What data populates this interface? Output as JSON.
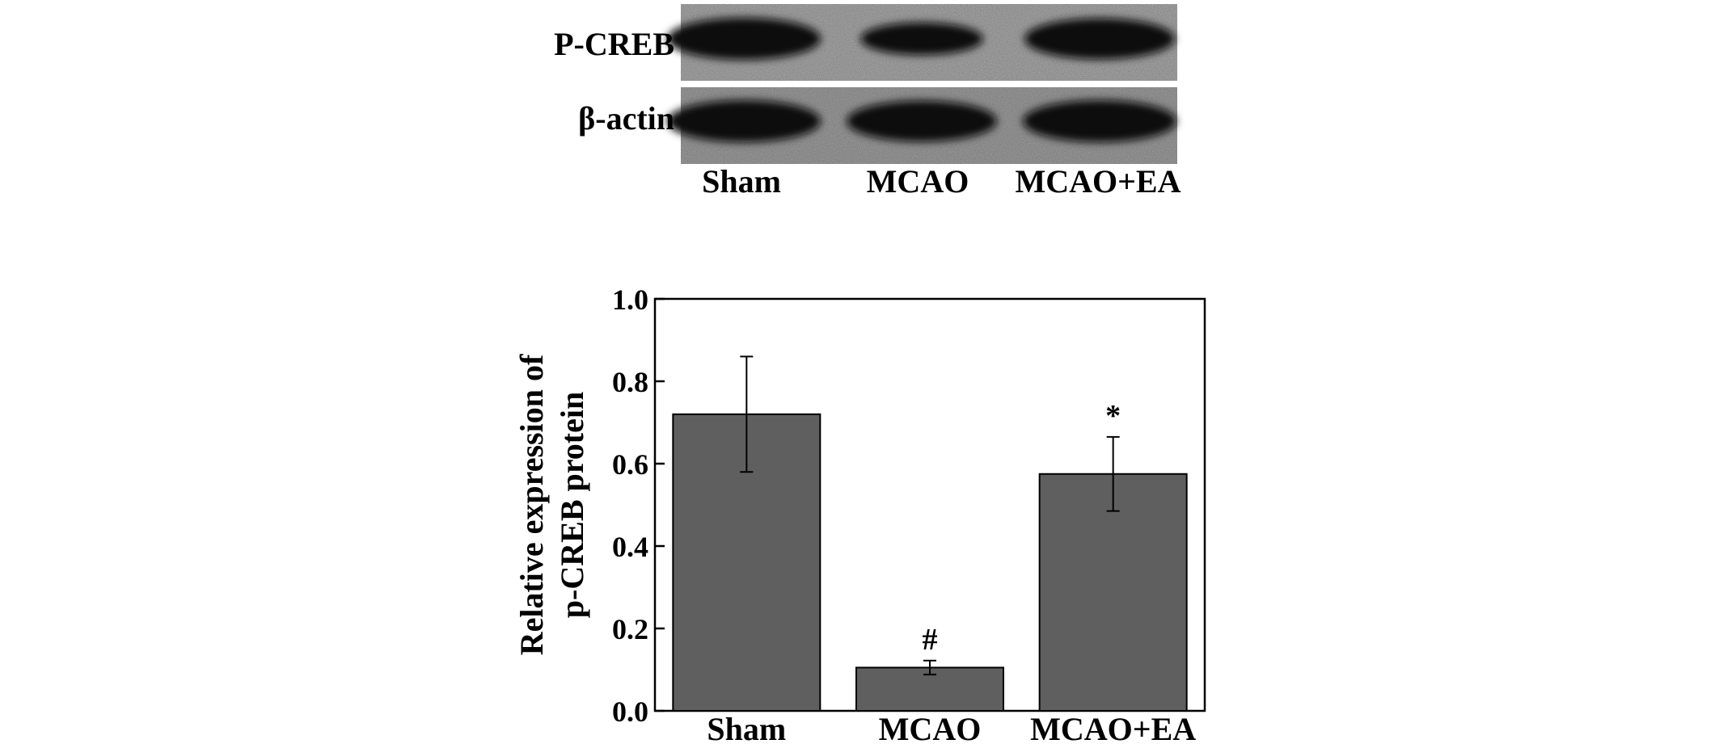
{
  "blot": {
    "rows": [
      {
        "label": "P-CREB",
        "band_intensity": [
          1.0,
          0.55,
          0.95
        ]
      },
      {
        "label": "β-actin",
        "band_intensity": [
          1.0,
          0.95,
          1.0
        ]
      }
    ],
    "lanes": [
      "Sham",
      "MCAO",
      "MCAO+EA"
    ]
  },
  "chart_data": {
    "type": "bar",
    "categories": [
      "Sham",
      "MCAO",
      "MCAO+EA"
    ],
    "values": [
      0.72,
      0.105,
      0.575
    ],
    "error": [
      0.14,
      0.017,
      0.09
    ],
    "annotations": [
      "",
      "#",
      "*"
    ],
    "xlabel": "",
    "ylabel_lines": [
      "Relative expression of",
      "p-CREB protein"
    ],
    "ylim": [
      0,
      1.0
    ],
    "yticks": [
      "0.0",
      "0.2",
      "0.4",
      "0.6",
      "0.8",
      "1.0"
    ],
    "bar_color": "#5f5f5f",
    "grid": false
  }
}
